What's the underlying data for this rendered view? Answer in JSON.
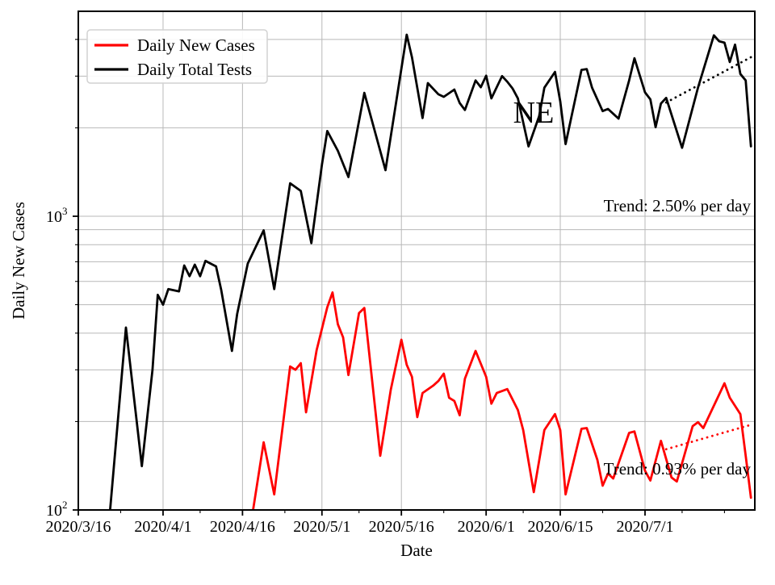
{
  "chart_data": {
    "type": "line",
    "title": "",
    "xlabel": "Date",
    "ylabel": "Daily New Cases",
    "yscale": "log",
    "ylim": [
      100,
      5000
    ],
    "xlim": [
      "2020/3/16",
      "2020/7/22"
    ],
    "grid": "both",
    "state_label": "NE",
    "colors": {
      "cases": "#ff0000",
      "tests": "#000000",
      "grid": "#b8b8b8",
      "legend_border": "#d2d2d2"
    },
    "x_ticks": [
      "2020/3/16",
      "2020/4/1",
      "2020/4/16",
      "2020/5/1",
      "2020/5/16",
      "2020/6/1",
      "2020/6/15",
      "2020/7/1"
    ],
    "x_minor_ticks": [
      "2020/3/24",
      "2020/4/8",
      "2020/4/24",
      "2020/5/8",
      "2020/5/24",
      "2020/6/8",
      "2020/6/23",
      "2020/7/8",
      "2020/7/16"
    ],
    "y_ticks": [
      {
        "value": 100,
        "base": "10",
        "exp": "2"
      },
      {
        "value": 1000,
        "base": "10",
        "exp": "3"
      }
    ],
    "y_minor_grid": [
      200,
      300,
      400,
      500,
      600,
      700,
      800,
      900,
      2000,
      3000,
      4000
    ],
    "legend": {
      "entries": [
        {
          "label": "Daily New Cases",
          "color": "#ff0000"
        },
        {
          "label": "Daily Total Tests",
          "color": "#000000"
        }
      ]
    },
    "series": [
      {
        "name": "Daily New Cases",
        "color": "#ff0000",
        "points": [
          [
            "2020/4/18",
            100
          ],
          [
            "2020/4/20",
            170
          ],
          [
            "2020/4/22",
            113
          ],
          [
            "2020/4/25",
            308
          ],
          [
            "2020/4/26",
            300
          ],
          [
            "2020/4/27",
            316
          ],
          [
            "2020/4/28",
            215
          ],
          [
            "2020/4/30",
            350
          ],
          [
            "2020/5/2",
            490
          ],
          [
            "2020/5/3",
            550
          ],
          [
            "2020/5/4",
            429
          ],
          [
            "2020/5/5",
            387
          ],
          [
            "2020/5/6",
            288
          ],
          [
            "2020/5/8",
            468
          ],
          [
            "2020/5/9",
            487
          ],
          [
            "2020/5/12",
            153
          ],
          [
            "2020/5/14",
            257
          ],
          [
            "2020/5/16",
            380
          ],
          [
            "2020/5/17",
            312
          ],
          [
            "2020/5/18",
            284
          ],
          [
            "2020/5/19",
            207
          ],
          [
            "2020/5/20",
            250
          ],
          [
            "2020/5/22",
            265
          ],
          [
            "2020/5/23",
            275
          ],
          [
            "2020/5/24",
            291
          ],
          [
            "2020/5/25",
            241
          ],
          [
            "2020/5/26",
            235
          ],
          [
            "2020/5/27",
            210
          ],
          [
            "2020/5/28",
            280
          ],
          [
            "2020/5/30",
            348
          ],
          [
            "2020/6/1",
            284
          ],
          [
            "2020/6/2",
            230
          ],
          [
            "2020/6/3",
            250
          ],
          [
            "2020/6/5",
            258
          ],
          [
            "2020/6/7",
            219
          ],
          [
            "2020/6/8",
            187
          ],
          [
            "2020/6/10",
            115
          ],
          [
            "2020/6/12",
            187
          ],
          [
            "2020/6/14",
            212
          ],
          [
            "2020/6/15",
            187
          ],
          [
            "2020/6/16",
            113
          ],
          [
            "2020/6/19",
            189
          ],
          [
            "2020/6/20",
            190
          ],
          [
            "2020/6/22",
            148
          ],
          [
            "2020/6/23",
            121
          ],
          [
            "2020/6/24",
            133
          ],
          [
            "2020/6/25",
            128
          ],
          [
            "2020/6/28",
            183
          ],
          [
            "2020/6/29",
            185
          ],
          [
            "2020/7/1",
            136
          ],
          [
            "2020/7/2",
            126
          ],
          [
            "2020/7/4",
            172
          ],
          [
            "2020/7/6",
            129
          ],
          [
            "2020/7/7",
            125
          ],
          [
            "2020/7/10",
            193
          ],
          [
            "2020/7/11",
            199
          ],
          [
            "2020/7/12",
            190
          ],
          [
            "2020/7/16",
            270
          ],
          [
            "2020/7/17",
            241
          ],
          [
            "2020/7/19",
            212
          ],
          [
            "2020/7/20",
            153
          ],
          [
            "2020/7/21",
            110
          ]
        ]
      },
      {
        "name": "Daily Total Tests",
        "color": "#000000",
        "points": [
          [
            "2020/3/22",
            100
          ],
          [
            "2020/3/25",
            418
          ],
          [
            "2020/3/28",
            141
          ],
          [
            "2020/3/30",
            300
          ],
          [
            "2020/3/31",
            540
          ],
          [
            "2020/4/1",
            500
          ],
          [
            "2020/4/2",
            565
          ],
          [
            "2020/4/4",
            555
          ],
          [
            "2020/4/5",
            680
          ],
          [
            "2020/4/6",
            625
          ],
          [
            "2020/4/7",
            684
          ],
          [
            "2020/4/8",
            625
          ],
          [
            "2020/4/9",
            705
          ],
          [
            "2020/4/10",
            690
          ],
          [
            "2020/4/11",
            675
          ],
          [
            "2020/4/12",
            560
          ],
          [
            "2020/4/14",
            348
          ],
          [
            "2020/4/15",
            465
          ],
          [
            "2020/4/17",
            690
          ],
          [
            "2020/4/20",
            895
          ],
          [
            "2020/4/22",
            565
          ],
          [
            "2020/4/25",
            1295
          ],
          [
            "2020/4/27",
            1220
          ],
          [
            "2020/4/29",
            810
          ],
          [
            "2020/5/1",
            1500
          ],
          [
            "2020/5/2",
            1950
          ],
          [
            "2020/5/4",
            1670
          ],
          [
            "2020/5/6",
            1360
          ],
          [
            "2020/5/9",
            2630
          ],
          [
            "2020/5/13",
            1435
          ],
          [
            "2020/5/17",
            4150
          ],
          [
            "2020/5/18",
            3480
          ],
          [
            "2020/5/20",
            2160
          ],
          [
            "2020/5/21",
            2840
          ],
          [
            "2020/5/23",
            2600
          ],
          [
            "2020/5/24",
            2550
          ],
          [
            "2020/5/26",
            2700
          ],
          [
            "2020/5/27",
            2430
          ],
          [
            "2020/5/28",
            2300
          ],
          [
            "2020/5/30",
            2900
          ],
          [
            "2020/5/31",
            2750
          ],
          [
            "2020/6/1",
            3010
          ],
          [
            "2020/6/2",
            2520
          ],
          [
            "2020/6/4",
            3000
          ],
          [
            "2020/6/5",
            2870
          ],
          [
            "2020/6/6",
            2720
          ],
          [
            "2020/6/7",
            2520
          ],
          [
            "2020/6/9",
            1730
          ],
          [
            "2020/6/11",
            2190
          ],
          [
            "2020/6/12",
            2740
          ],
          [
            "2020/6/14",
            3100
          ],
          [
            "2020/6/15",
            2460
          ],
          [
            "2020/6/16",
            1760
          ],
          [
            "2020/6/19",
            3150
          ],
          [
            "2020/6/20",
            3170
          ],
          [
            "2020/6/21",
            2740
          ],
          [
            "2020/6/23",
            2280
          ],
          [
            "2020/6/24",
            2320
          ],
          [
            "2020/6/26",
            2150
          ],
          [
            "2020/6/28",
            2900
          ],
          [
            "2020/6/29",
            3450
          ],
          [
            "2020/7/1",
            2640
          ],
          [
            "2020/7/2",
            2500
          ],
          [
            "2020/7/3",
            2010
          ],
          [
            "2020/7/4",
            2420
          ],
          [
            "2020/7/5",
            2530
          ],
          [
            "2020/7/8",
            1710
          ],
          [
            "2020/7/11",
            2740
          ],
          [
            "2020/7/14",
            4130
          ],
          [
            "2020/7/15",
            3940
          ],
          [
            "2020/7/16",
            3900
          ],
          [
            "2020/7/17",
            3350
          ],
          [
            "2020/7/18",
            3840
          ],
          [
            "2020/7/19",
            3050
          ],
          [
            "2020/7/20",
            2900
          ],
          [
            "2020/7/21",
            1730
          ]
        ]
      }
    ],
    "trend_lines": [
      {
        "series": "Daily Total Tests",
        "color": "#000000",
        "style": "dotted",
        "start": [
          "2020/7/5",
          2440
        ],
        "end": [
          "2020/7/21",
          3480
        ],
        "label": "Trend: 2.50% per day"
      },
      {
        "series": "Daily New Cases",
        "color": "#ff0000",
        "style": "dotted",
        "start": [
          "2020/7/5",
          161
        ],
        "end": [
          "2020/7/21",
          195
        ],
        "label": "Trend: 0.93% per day"
      }
    ]
  }
}
